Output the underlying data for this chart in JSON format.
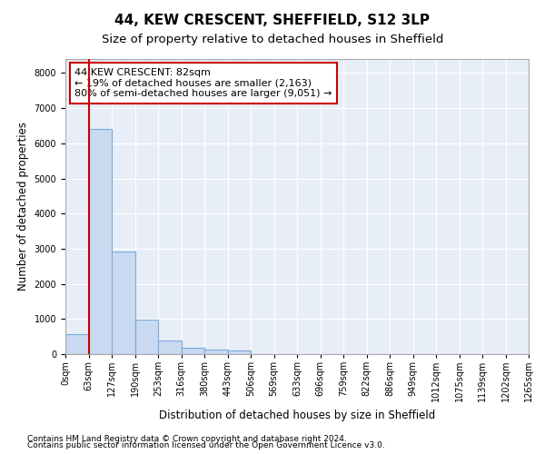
{
  "title": "44, KEW CRESCENT, SHEFFIELD, S12 3LP",
  "subtitle": "Size of property relative to detached houses in Sheffield",
  "xlabel": "Distribution of detached houses by size in Sheffield",
  "ylabel": "Number of detached properties",
  "footnote1": "Contains HM Land Registry data © Crown copyright and database right 2024.",
  "footnote2": "Contains public sector information licensed under the Open Government Licence v3.0.",
  "bar_values": [
    560,
    6400,
    2920,
    980,
    380,
    175,
    130,
    100,
    0,
    0,
    0,
    0,
    0,
    0,
    0,
    0,
    0,
    0,
    0,
    0
  ],
  "x_labels": [
    "0sqm",
    "63sqm",
    "127sqm",
    "190sqm",
    "253sqm",
    "316sqm",
    "380sqm",
    "443sqm",
    "506sqm",
    "569sqm",
    "633sqm",
    "696sqm",
    "759sqm",
    "822sqm",
    "886sqm",
    "949sqm",
    "1012sqm",
    "1075sqm",
    "1139sqm",
    "1202sqm",
    "1265sqm"
  ],
  "bar_color": "#c8d9f0",
  "bar_edge_color": "#7aabda",
  "property_line_color": "#cc0000",
  "annotation_text": "44 KEW CRESCENT: 82sqm\n← 19% of detached houses are smaller (2,163)\n80% of semi-detached houses are larger (9,051) →",
  "annotation_box_color": "#ffffff",
  "annotation_box_edge_color": "#cc0000",
  "ylim": [
    0,
    8400
  ],
  "yticks": [
    0,
    1000,
    2000,
    3000,
    4000,
    5000,
    6000,
    7000,
    8000
  ],
  "bg_color": "#ffffff",
  "axes_bg_color": "#e8eef8",
  "grid_color": "#ffffff",
  "title_fontsize": 11,
  "subtitle_fontsize": 9.5,
  "axis_label_fontsize": 8.5,
  "tick_fontsize": 7,
  "annotation_fontsize": 8,
  "footnote_fontsize": 6.5
}
